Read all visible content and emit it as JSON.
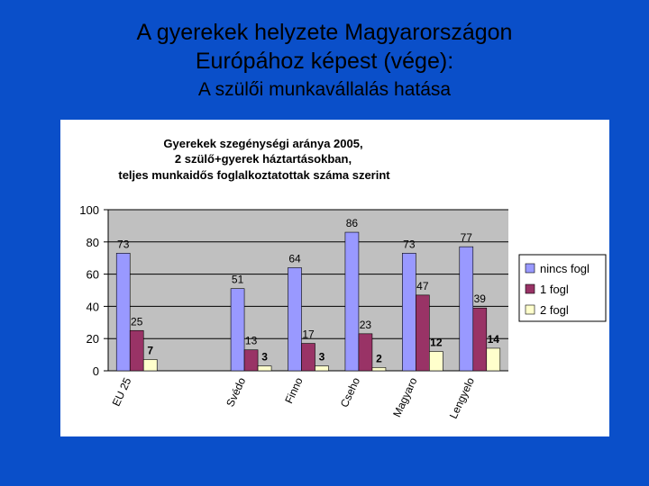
{
  "slide": {
    "title_line1": "A gyerekek helyzete Magyarországon",
    "title_line2": "Európához képest (vége):",
    "subtitle": "A szülői munkavállalás hatása"
  },
  "chart_data": {
    "type": "bar",
    "title_lines": [
      "Gyerekek szegénységi aránya  2005,",
      "2 szülő+gyerek háztartásokban,",
      "teljes munkaidős foglalkoztatottak száma szerint"
    ],
    "categories": [
      "EU 25",
      "",
      "Svédo",
      "Finno",
      "Cseho",
      "Magyaro",
      "Lengyelo"
    ],
    "series": [
      {
        "name": "nincs fogl",
        "color": "#9999ff",
        "values": [
          73,
          null,
          51,
          64,
          86,
          73,
          77
        ]
      },
      {
        "name": "1 fogl",
        "color": "#993366",
        "values": [
          25,
          null,
          13,
          17,
          23,
          47,
          39
        ]
      },
      {
        "name": "2 fogl",
        "color": "#ffffcc",
        "values": [
          7,
          null,
          3,
          3,
          2,
          12,
          14
        ]
      }
    ],
    "ylim": [
      0,
      100
    ],
    "yticks": [
      0,
      20,
      40,
      60,
      80,
      100
    ],
    "grid": true,
    "legend": "right"
  }
}
